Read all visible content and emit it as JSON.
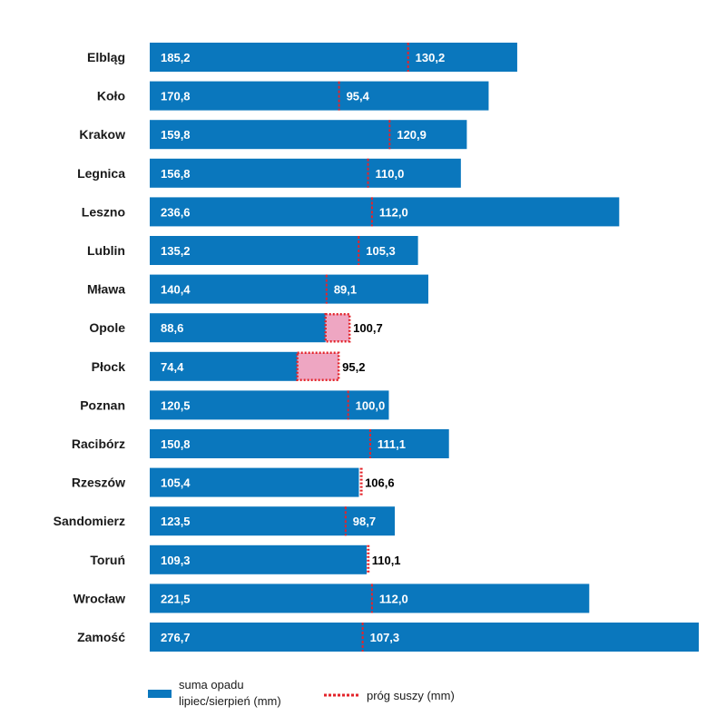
{
  "colors": {
    "bar": "#0a77bd",
    "deficit_fill": "#eea6c2",
    "threshold": "#e3242b",
    "label_on_bar": "#ffffff",
    "label_off_bar": "#000000"
  },
  "chart_data": {
    "type": "bar",
    "orientation": "horizontal",
    "categories": [
      "Elbląg",
      "Koło",
      "Krakow",
      "Legnica",
      "Leszno",
      "Lublin",
      "Mława",
      "Opole",
      "Płock",
      "Poznan",
      "Racibórz",
      "Rzeszów",
      "Sandomierz",
      "Toruń",
      "Wrocław",
      "Zamość"
    ],
    "series": [
      {
        "name": "suma opadu lipiec/sierpień (mm)",
        "values": [
          185.2,
          170.8,
          159.8,
          156.8,
          236.6,
          135.2,
          140.4,
          88.6,
          74.4,
          120.5,
          150.8,
          105.4,
          123.5,
          109.3,
          221.5,
          276.7
        ],
        "labels": [
          "185,2",
          "170,8",
          "159,8",
          "156,8",
          "236,6",
          "135,2",
          "140,4",
          "88,6",
          "74,4",
          "120,5",
          "150,8",
          "105,4",
          "123,5",
          "109,3",
          "221,5",
          "276,7"
        ]
      },
      {
        "name": "próg suszy (mm)",
        "values": [
          130.2,
          95.4,
          120.9,
          110.0,
          112.0,
          105.3,
          89.1,
          100.7,
          95.2,
          100.0,
          111.1,
          106.6,
          98.7,
          110.1,
          112.0,
          107.3
        ],
        "labels": [
          "130,2",
          "95,4",
          "120,9",
          "110,0",
          "112,0",
          "105,3",
          "89,1",
          "100,7",
          "95,2",
          "100,0",
          "111,1",
          "106,6",
          "98,7",
          "110,1",
          "112,0",
          "107,3"
        ]
      }
    ],
    "xlim": [
      0,
      276.7
    ],
    "grid": false,
    "legend": {
      "position": "bottom",
      "items": [
        {
          "label_line1": "suma opadu",
          "label_line2": "lipiec/sierpień (mm)",
          "style": "solid-bar"
        },
        {
          "label": "próg suszy (mm)",
          "style": "dotted-line"
        }
      ]
    }
  }
}
